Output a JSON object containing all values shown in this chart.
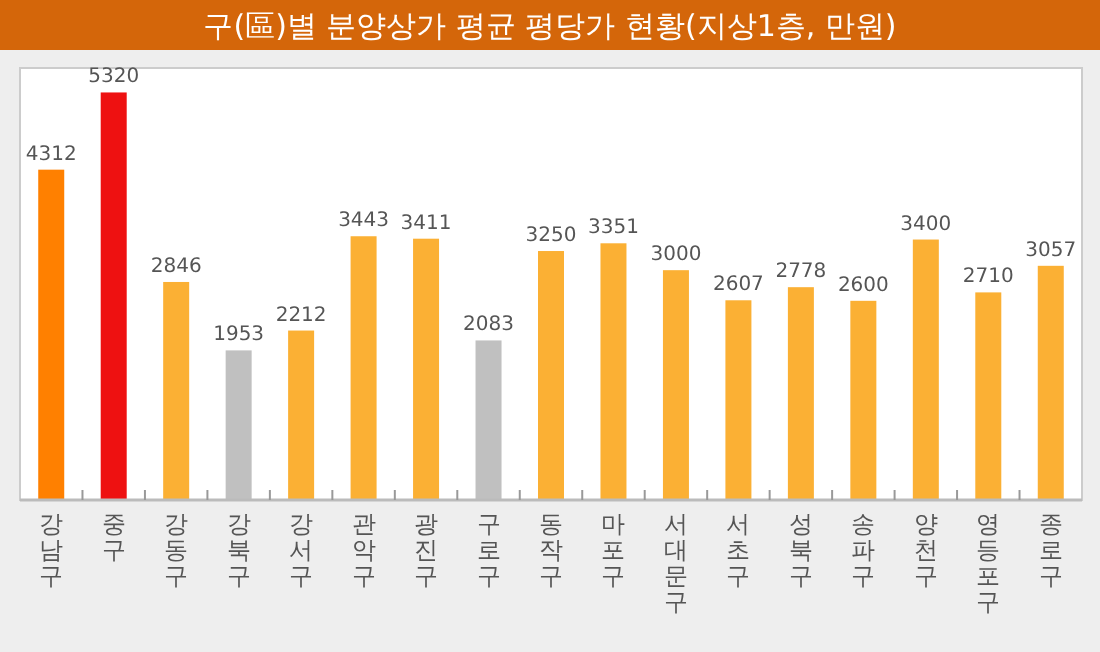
{
  "chart_data": {
    "type": "bar",
    "title": "구(區)별 분양상가 평균 평당가 현황(지상1층, 만원)",
    "categories": [
      "강남구",
      "중구",
      "강동구",
      "강북구",
      "강서구",
      "관악구",
      "광진구",
      "구로구",
      "동작구",
      "마포구",
      "서대문구",
      "서초구",
      "성북구",
      "송파구",
      "양천구",
      "영등포구",
      "종로구"
    ],
    "values": [
      4312,
      5320,
      2846,
      1953,
      2212,
      3443,
      3411,
      2083,
      3250,
      3351,
      3000,
      2607,
      2778,
      2600,
      3400,
      2710,
      3057
    ],
    "colors": [
      "#ff8000",
      "#ee1111",
      "#fbb034",
      "#c0c0c0",
      "#fbb034",
      "#fbb034",
      "#fbb034",
      "#c0c0c0",
      "#fbb034",
      "#fbb034",
      "#fbb034",
      "#fbb034",
      "#fbb034",
      "#fbb034",
      "#fbb034",
      "#fbb034",
      "#fbb034"
    ],
    "data_labels": true
  }
}
